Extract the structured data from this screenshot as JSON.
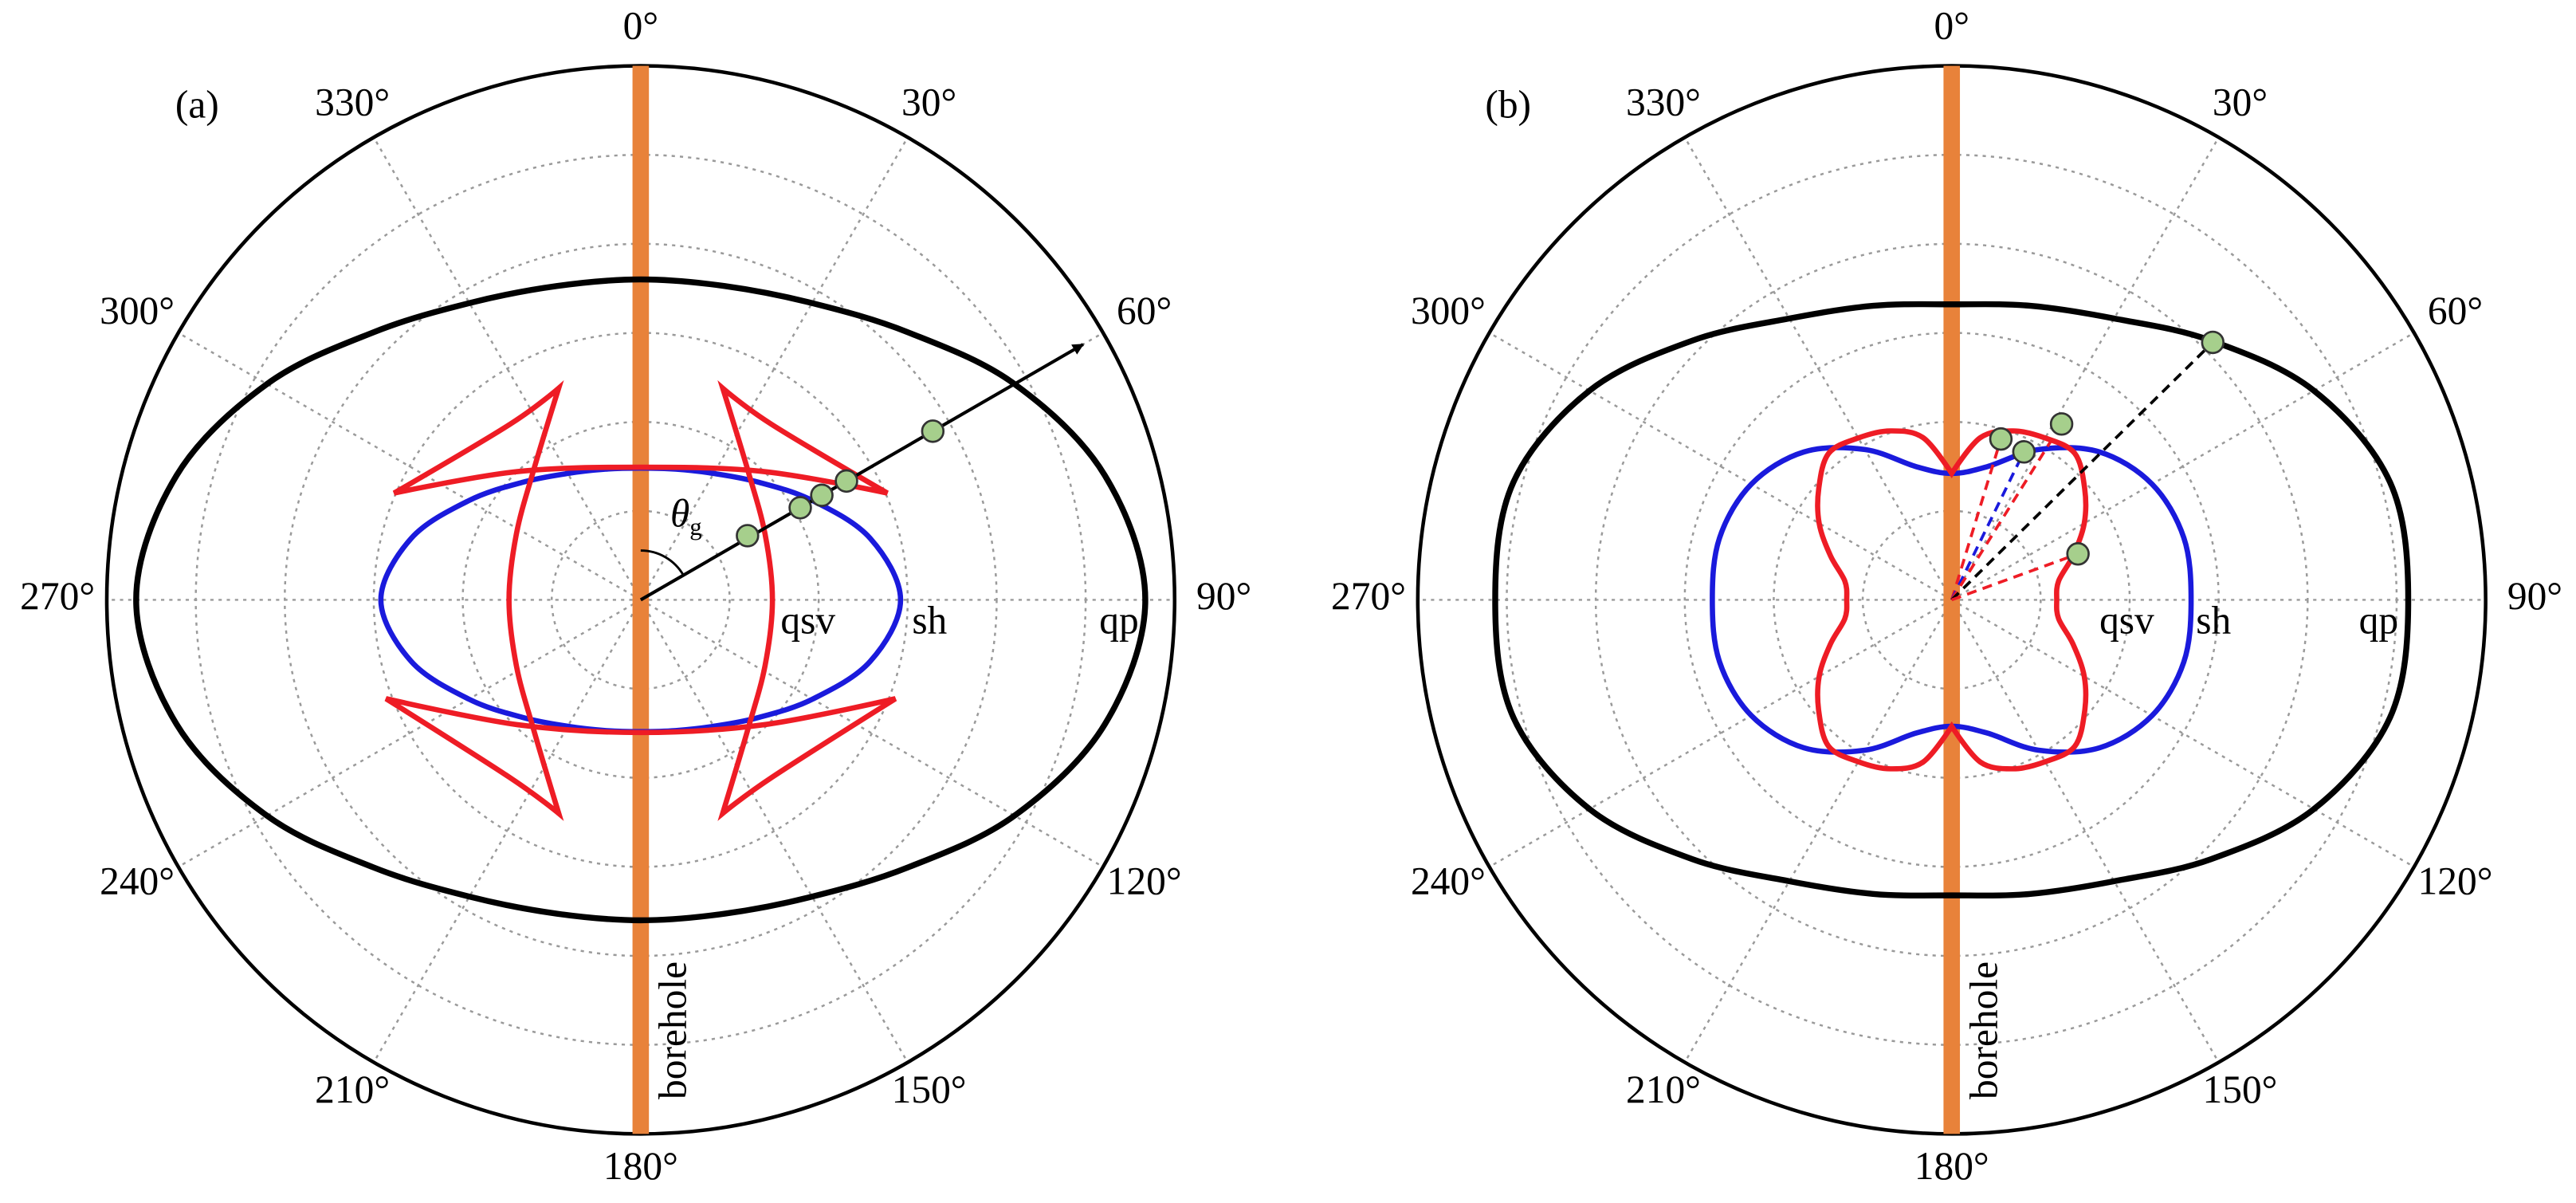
{
  "chart_data": [
    {
      "type": "polar",
      "panel": "(a)",
      "annotation": "borehole",
      "theta_label": {
        "symbol": "θ",
        "subscript": "g"
      },
      "rlim": [
        0,
        6
      ],
      "rticks": [
        1,
        2,
        3,
        4,
        5
      ],
      "grid": true,
      "thetaticks": [
        {
          "value": 0,
          "label": "0°"
        },
        {
          "value": 30,
          "label": "30°"
        },
        {
          "value": 60,
          "label": "60°"
        },
        {
          "value": 90,
          "label": "90°"
        },
        {
          "value": 120,
          "label": "120°"
        },
        {
          "value": 150,
          "label": "150°"
        },
        {
          "value": 180,
          "label": "180°"
        },
        {
          "value": 210,
          "label": "210°"
        },
        {
          "value": 240,
          "label": "240°"
        },
        {
          "value": 270,
          "label": "270°"
        },
        {
          "value": 300,
          "label": "300°"
        },
        {
          "value": 330,
          "label": "330°"
        }
      ],
      "series": [
        {
          "name": "qp",
          "color": "#000000",
          "theta": [
            0,
            15,
            30,
            45,
            60,
            75,
            90,
            105,
            120,
            135,
            150,
            165,
            180,
            195,
            210,
            225,
            240,
            255,
            270,
            285,
            300,
            315,
            330,
            345
          ],
          "values": [
            3.6,
            3.65,
            3.85,
            4.25,
            4.85,
            5.4,
            5.67,
            5.4,
            4.85,
            4.25,
            3.85,
            3.65,
            3.6,
            3.65,
            3.85,
            4.25,
            4.85,
            5.4,
            5.67,
            5.4,
            4.85,
            4.25,
            3.85,
            3.65
          ]
        },
        {
          "name": "sh",
          "color": "#1a1adc",
          "theta": [
            0,
            15,
            30,
            45,
            60,
            75,
            90,
            105,
            120,
            135,
            150,
            165,
            180,
            195,
            210,
            225,
            240,
            255,
            270,
            285,
            300,
            315,
            330,
            345
          ],
          "values": [
            1.48,
            1.52,
            1.64,
            1.87,
            2.23,
            2.67,
            2.92,
            2.67,
            2.23,
            1.87,
            1.64,
            1.52,
            1.48,
            1.52,
            1.64,
            1.87,
            2.23,
            2.67,
            2.92,
            2.67,
            2.23,
            1.87,
            1.64,
            1.52
          ]
        },
        {
          "name": "qsv",
          "color": "#ee1c25",
          "theta": [
            0,
            43.9,
            66.6,
            36.8,
            21.2,
            39.1,
            62.2,
            90,
            117.8,
            140.9,
            159,
            143.5,
            111.2,
            135.4,
            180,
            224.6,
            248.8,
            216.5,
            201,
            219.1,
            242.2,
            270,
            297.8,
            320.9,
            338.8,
            323.2,
            293.4,
            316.1
          ],
          "values": [
            1.49,
            2.0,
            3.02,
            2.46,
            2.55,
            1.9,
            1.58,
            1.48,
            1.58,
            1.9,
            2.57,
            2.48,
            3.07,
            1.97,
            1.49,
            1.97,
            3.07,
            2.48,
            2.57,
            1.9,
            1.58,
            1.48,
            1.58,
            1.9,
            2.55,
            2.46,
            3.02,
            2.0
          ]
        }
      ],
      "points": {
        "theta": [
          59,
          60,
          60,
          60,
          60
        ],
        "r": [
          1.4,
          2.07,
          2.35,
          2.67,
          3.79
        ]
      },
      "arrow": {
        "theta": 60,
        "r": 5.74
      }
    },
    {
      "type": "polar",
      "panel": "(b)",
      "annotation": "borehole",
      "rlim": [
        0,
        6
      ],
      "rticks": [
        1,
        2,
        3,
        4,
        5
      ],
      "grid": true,
      "thetaticks": [
        {
          "value": 0,
          "label": "0°"
        },
        {
          "value": 30,
          "label": "30°"
        },
        {
          "value": 60,
          "label": "60°"
        },
        {
          "value": 90,
          "label": "90°"
        },
        {
          "value": 120,
          "label": "120°"
        },
        {
          "value": 150,
          "label": "150°"
        },
        {
          "value": 180,
          "label": "180°"
        },
        {
          "value": 210,
          "label": "210°"
        },
        {
          "value": 240,
          "label": "240°"
        },
        {
          "value": 270,
          "label": "270°"
        },
        {
          "value": 300,
          "label": "300°"
        },
        {
          "value": 330,
          "label": "330°"
        }
      ],
      "series": [
        {
          "name": "qp",
          "color": "#000000",
          "theta": [
            0,
            15,
            30,
            45,
            60,
            75,
            90,
            105,
            120,
            135,
            150,
            165,
            180,
            195,
            210,
            225,
            240,
            255,
            270,
            285,
            300,
            315,
            330,
            345
          ],
          "values": [
            3.32,
            3.42,
            3.65,
            4.12,
            4.7,
            5.1,
            5.13,
            5.1,
            4.7,
            4.12,
            3.65,
            3.42,
            3.32,
            3.42,
            3.65,
            4.12,
            4.7,
            5.1,
            5.13,
            5.1,
            4.7,
            4.12,
            3.65,
            3.42
          ]
        },
        {
          "name": "sh",
          "color": "#1a1adc",
          "theta": [
            0,
            15,
            30,
            45,
            60,
            75,
            90,
            105,
            120,
            135,
            150,
            165,
            180,
            195,
            210,
            225,
            240,
            255,
            270,
            285,
            300,
            315,
            330,
            345
          ],
          "values": [
            1.42,
            1.55,
            1.95,
            2.35,
            2.6,
            2.7,
            2.69,
            2.7,
            2.6,
            2.35,
            1.95,
            1.55,
            1.42,
            1.55,
            1.95,
            2.35,
            2.6,
            2.7,
            2.69,
            2.7,
            2.6,
            2.35,
            1.95,
            1.55
          ]
        },
        {
          "name": "qsv",
          "color": "#ee1c25",
          "theta": [
            0,
            10,
            20,
            30,
            40,
            50,
            60,
            70,
            80,
            90,
            100,
            110,
            120,
            130,
            140,
            150,
            160,
            170,
            180,
            190,
            200,
            210,
            220,
            230,
            240,
            250,
            260,
            270,
            280,
            290,
            300,
            310,
            320,
            330,
            340,
            350
          ],
          "values": [
            1.42,
            1.85,
            2.02,
            2.1,
            2.15,
            1.95,
            1.72,
            1.45,
            1.22,
            1.18,
            1.22,
            1.45,
            1.72,
            1.95,
            2.15,
            2.1,
            2.02,
            1.85,
            1.42,
            1.85,
            2.02,
            2.1,
            2.15,
            1.95,
            1.72,
            1.45,
            1.22,
            1.18,
            1.22,
            1.45,
            1.72,
            1.95,
            2.15,
            2.1,
            2.02,
            1.85
          ]
        }
      ],
      "points": {
        "theta": [
          17,
          26,
          32,
          45.4,
          70
        ],
        "r": [
          1.89,
          1.85,
          2.33,
          4.12,
          1.51
        ],
        "ray_colors": [
          "#ee1c25",
          "#1a1adc",
          "#ee1c25",
          "#000000",
          "#ee1c25"
        ]
      }
    }
  ]
}
